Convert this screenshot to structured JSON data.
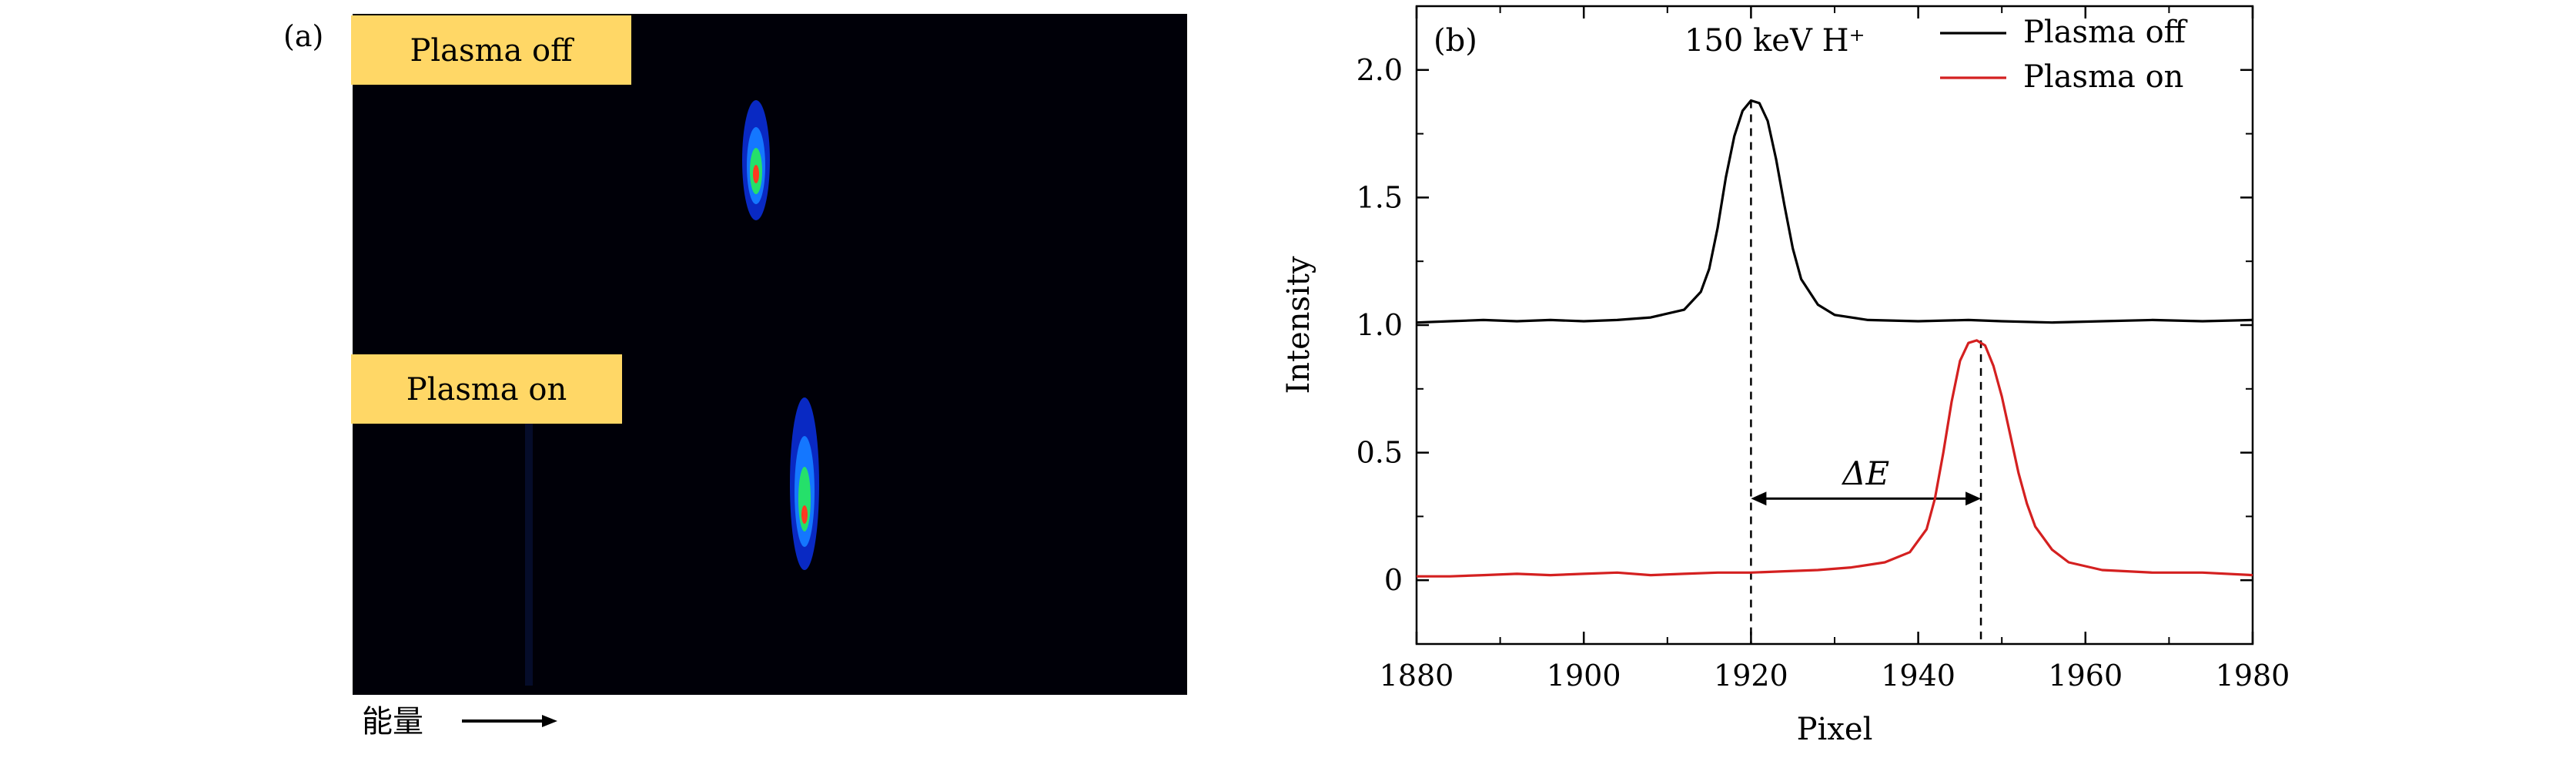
{
  "figure": {
    "panel_a": {
      "label": "(a)",
      "tag_off": "Plasma off",
      "tag_on": "Plasma on",
      "tag_color": "#ffd766",
      "image_bg": "#000008",
      "axis_note": "能量"
    },
    "panel_b": {
      "label": "(b)",
      "beam_label": "150 keV H⁺",
      "delta_label": "ΔE"
    }
  },
  "chart_data": {
    "type": "line",
    "xlabel": "Pixel",
    "ylabel": "Intensity",
    "xlim": [
      1880,
      1980
    ],
    "ylim": [
      -0.25,
      2.25
    ],
    "xticks": [
      1880,
      1900,
      1920,
      1940,
      1960,
      1980
    ],
    "xtick_labels": [
      "1880",
      "1900",
      "1920",
      "1940",
      "1960",
      "1980"
    ],
    "yticks": [
      0,
      0.5,
      1.0,
      1.5,
      2.0
    ],
    "ytick_labels": [
      "0",
      "0.5",
      "1.0",
      "1.5",
      "2.0"
    ],
    "grid": false,
    "legend_position": "top-right",
    "series": [
      {
        "name": "Plasma off",
        "color": "#000000",
        "x": [
          1880,
          1884,
          1888,
          1892,
          1896,
          1900,
          1904,
          1908,
          1912,
          1914,
          1915,
          1916,
          1917,
          1918,
          1919,
          1920,
          1921,
          1922,
          1923,
          1924,
          1925,
          1926,
          1928,
          1930,
          1934,
          1940,
          1946,
          1950,
          1956,
          1962,
          1968,
          1974,
          1980
        ],
        "y": [
          1.01,
          1.015,
          1.02,
          1.015,
          1.02,
          1.015,
          1.02,
          1.03,
          1.06,
          1.13,
          1.22,
          1.38,
          1.58,
          1.74,
          1.84,
          1.88,
          1.87,
          1.8,
          1.65,
          1.47,
          1.3,
          1.18,
          1.08,
          1.04,
          1.02,
          1.015,
          1.02,
          1.015,
          1.01,
          1.015,
          1.02,
          1.015,
          1.02
        ]
      },
      {
        "name": "Plasma on",
        "color": "#d42020",
        "x": [
          1880,
          1884,
          1888,
          1892,
          1896,
          1900,
          1904,
          1908,
          1912,
          1916,
          1920,
          1924,
          1928,
          1932,
          1936,
          1939,
          1941,
          1942,
          1943,
          1944,
          1945,
          1946,
          1947,
          1948,
          1949,
          1950,
          1951,
          1952,
          1953,
          1954,
          1956,
          1958,
          1962,
          1968,
          1974,
          1980
        ],
        "y": [
          0.015,
          0.015,
          0.02,
          0.025,
          0.02,
          0.025,
          0.03,
          0.02,
          0.025,
          0.03,
          0.03,
          0.035,
          0.04,
          0.05,
          0.07,
          0.11,
          0.2,
          0.32,
          0.5,
          0.7,
          0.86,
          0.93,
          0.94,
          0.92,
          0.84,
          0.72,
          0.57,
          0.42,
          0.3,
          0.21,
          0.12,
          0.07,
          0.04,
          0.03,
          0.03,
          0.02
        ]
      }
    ],
    "annotations": [
      {
        "type": "vline",
        "x": 1920,
        "y_top": 1.88,
        "style": "dashed"
      },
      {
        "type": "vline",
        "x": 1947.5,
        "y_top": 0.94,
        "style": "dashed"
      },
      {
        "type": "double-arrow",
        "x_from": 1920,
        "x_to": 1947.5,
        "y": 0.32
      }
    ]
  }
}
